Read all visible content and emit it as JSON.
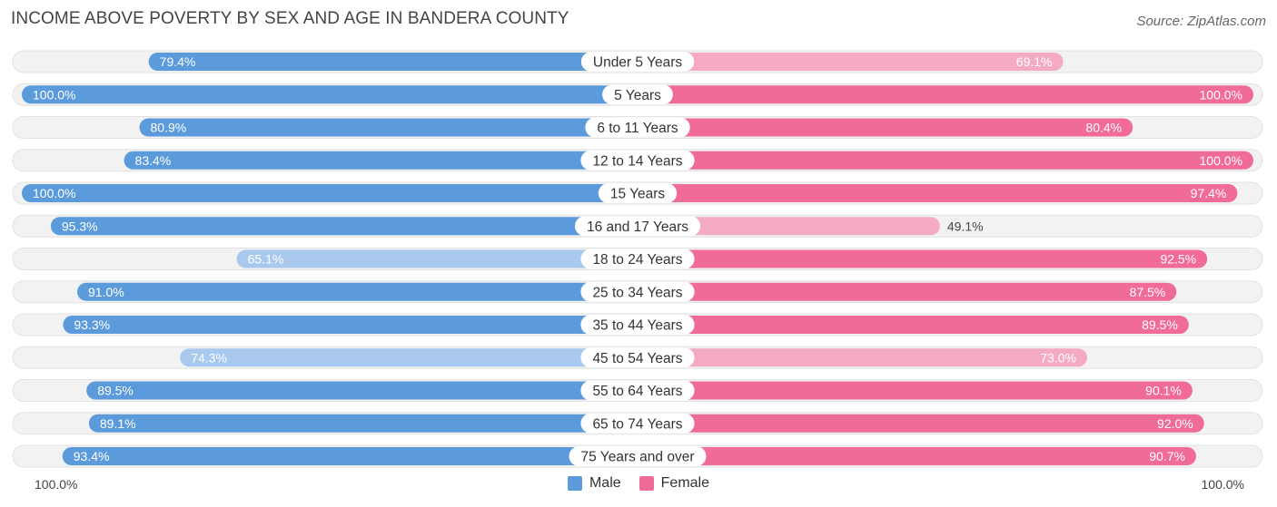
{
  "header": {
    "title": "INCOME ABOVE POVERTY BY SEX AND AGE IN BANDERA COUNTY",
    "source": "Source: ZipAtlas.com"
  },
  "axis": {
    "left_label": "100.0%",
    "right_label": "100.0%"
  },
  "legend": {
    "male": "Male",
    "female": "Female"
  },
  "colors": {
    "male_strong": "#5b9bdc",
    "male_light": "#a9c8ee",
    "female_strong": "#f06b97",
    "female_light": "#f5aac4",
    "track": "#f1f1f1"
  },
  "chart_data": {
    "type": "bar",
    "orientation": "horizontal-diverging",
    "title": "INCOME ABOVE POVERTY BY SEX AND AGE IN BANDERA COUNTY",
    "categories": [
      "Under 5 Years",
      "5 Years",
      "6 to 11 Years",
      "12 to 14 Years",
      "15 Years",
      "16 and 17 Years",
      "18 to 24 Years",
      "25 to 34 Years",
      "35 to 44 Years",
      "45 to 54 Years",
      "55 to 64 Years",
      "65 to 74 Years",
      "75 Years and over"
    ],
    "series": [
      {
        "name": "Male",
        "values": [
          79.4,
          100.0,
          80.9,
          83.4,
          100.0,
          95.3,
          65.1,
          91.0,
          93.3,
          74.3,
          89.5,
          89.1,
          93.4
        ],
        "labels": [
          "79.4%",
          "100.0%",
          "80.9%",
          "83.4%",
          "100.0%",
          "95.3%",
          "65.1%",
          "91.0%",
          "93.3%",
          "74.3%",
          "89.5%",
          "89.1%",
          "93.4%"
        ]
      },
      {
        "name": "Female",
        "values": [
          69.1,
          100.0,
          80.4,
          100.0,
          97.4,
          49.1,
          92.5,
          87.5,
          89.5,
          73.0,
          90.1,
          92.0,
          90.7
        ],
        "labels": [
          "69.1%",
          "100.0%",
          "80.4%",
          "100.0%",
          "97.4%",
          "49.1%",
          "92.5%",
          "87.5%",
          "89.5%",
          "73.0%",
          "90.1%",
          "92.0%",
          "90.7%"
        ]
      }
    ],
    "xlim": [
      0,
      100
    ],
    "legend_position": "bottom-center"
  }
}
